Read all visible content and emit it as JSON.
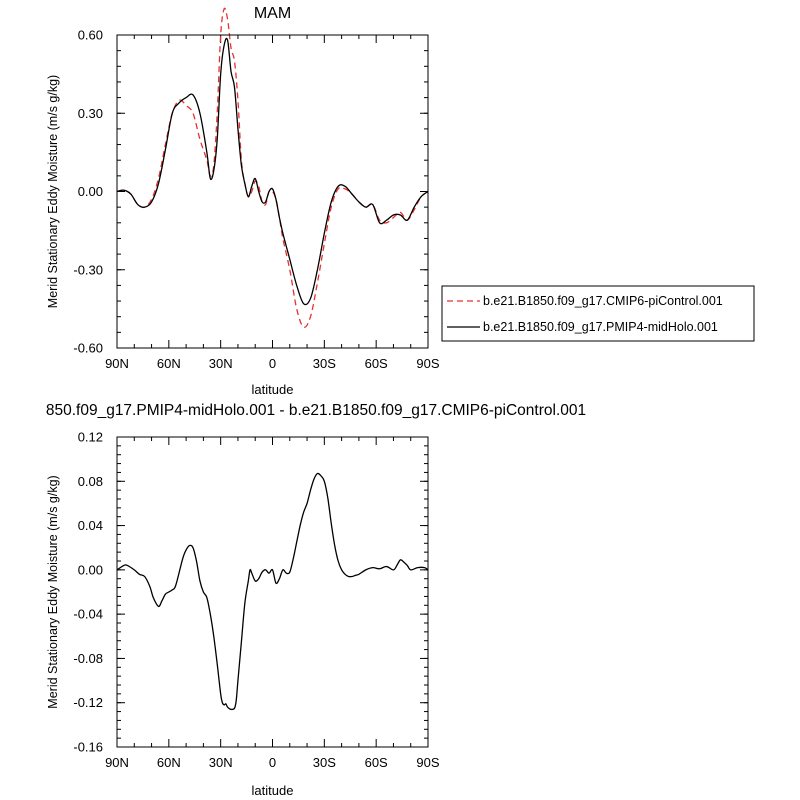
{
  "chart_data": [
    {
      "type": "line",
      "title": "MAM",
      "xlabel": "latitude",
      "ylabel": "Merid Stationary Eddy Moisture (m/s g/kg)",
      "x_ticks": [
        {
          "value": 90,
          "label": "90N"
        },
        {
          "value": 60,
          "label": "60N"
        },
        {
          "value": 30,
          "label": "30N"
        },
        {
          "value": 0,
          "label": "0"
        },
        {
          "value": -30,
          "label": "30S"
        },
        {
          "value": -60,
          "label": "60S"
        },
        {
          "value": -90,
          "label": "90S"
        }
      ],
      "y_ticks": [
        {
          "value": 0.6,
          "label": "0.60"
        },
        {
          "value": 0.3,
          "label": "0.30"
        },
        {
          "value": 0.0,
          "label": "0.00"
        },
        {
          "value": -0.3,
          "label": "-0.30"
        },
        {
          "value": -0.6,
          "label": "-0.60"
        }
      ],
      "xlim": [
        90,
        -90
      ],
      "ylim": [
        -0.6,
        0.6
      ],
      "legend_position": "right",
      "series": [
        {
          "name": "b.e21.B1850.f09_g17.CMIP6-piControl.001",
          "color": "#e8302f",
          "dash": "dashed",
          "x": [
            90,
            86,
            82,
            78,
            74,
            70,
            66,
            62,
            58,
            54,
            50,
            46,
            42,
            38,
            36,
            34,
            32,
            30,
            28,
            26,
            24,
            22,
            20,
            18,
            16,
            14,
            12,
            10,
            8,
            6,
            4,
            2,
            0,
            -2,
            -4,
            -6,
            -10,
            -14,
            -18,
            -22,
            -26,
            -30,
            -34,
            -38,
            -42,
            -46,
            -50,
            -54,
            -58,
            -62,
            -66,
            -70,
            -74,
            -78,
            -82,
            -86,
            -90
          ],
          "y": [
            0.0,
            0.005,
            -0.01,
            -0.05,
            -0.06,
            -0.03,
            0.05,
            0.18,
            0.3,
            0.35,
            0.33,
            0.3,
            0.2,
            0.12,
            0.06,
            0.1,
            0.3,
            0.6,
            0.7,
            0.66,
            0.55,
            0.5,
            0.35,
            0.12,
            0.03,
            -0.02,
            0.0,
            0.04,
            0.02,
            -0.04,
            -0.05,
            0.0,
            0.0,
            -0.03,
            -0.1,
            -0.18,
            -0.3,
            -0.45,
            -0.52,
            -0.48,
            -0.35,
            -0.2,
            -0.06,
            0.01,
            0.01,
            -0.01,
            -0.04,
            -0.06,
            -0.05,
            -0.11,
            -0.12,
            -0.1,
            -0.08,
            -0.11,
            -0.07,
            -0.02,
            0.0
          ]
        },
        {
          "name": "b.e21.B1850.f09_g17.PMIP4-midHolo.001",
          "color": "#000000",
          "dash": "solid",
          "x": [
            90,
            86,
            82,
            78,
            74,
            70,
            66,
            62,
            58,
            54,
            50,
            46,
            42,
            38,
            36,
            34,
            32,
            30,
            28,
            26,
            24,
            22,
            20,
            18,
            16,
            14,
            12,
            10,
            8,
            6,
            4,
            2,
            0,
            -2,
            -4,
            -6,
            -10,
            -14,
            -18,
            -22,
            -26,
            -30,
            -34,
            -38,
            -42,
            -46,
            -50,
            -54,
            -58,
            -62,
            -66,
            -70,
            -74,
            -78,
            -82,
            -86,
            -90
          ],
          "y": [
            0.0,
            0.005,
            -0.01,
            -0.05,
            -0.06,
            -0.04,
            0.03,
            0.16,
            0.3,
            0.34,
            0.36,
            0.37,
            0.3,
            0.15,
            0.05,
            0.08,
            0.2,
            0.45,
            0.56,
            0.58,
            0.46,
            0.4,
            0.24,
            0.1,
            0.03,
            -0.02,
            0.02,
            0.05,
            0.0,
            -0.04,
            -0.04,
            0.0,
            0.01,
            -0.03,
            -0.1,
            -0.16,
            -0.26,
            -0.36,
            -0.43,
            -0.41,
            -0.3,
            -0.16,
            -0.04,
            0.02,
            0.02,
            -0.01,
            -0.04,
            -0.06,
            -0.05,
            -0.12,
            -0.11,
            -0.09,
            -0.09,
            -0.11,
            -0.06,
            -0.02,
            0.0
          ]
        }
      ]
    },
    {
      "type": "line",
      "title": "850.f09_g17.PMIP4-midHolo.001 - b.e21.B1850.f09_g17.CMIP6-piControl.001",
      "xlabel": "latitude",
      "ylabel": "Merid Stationary Eddy Moisture (m/s g/kg)",
      "x_ticks": [
        {
          "value": 90,
          "label": "90N"
        },
        {
          "value": 60,
          "label": "60N"
        },
        {
          "value": 30,
          "label": "30N"
        },
        {
          "value": 0,
          "label": "0"
        },
        {
          "value": -30,
          "label": "30S"
        },
        {
          "value": -60,
          "label": "60S"
        },
        {
          "value": -90,
          "label": "90S"
        }
      ],
      "y_ticks": [
        {
          "value": 0.12,
          "label": "0.12"
        },
        {
          "value": 0.08,
          "label": "0.08"
        },
        {
          "value": 0.04,
          "label": "0.04"
        },
        {
          "value": 0.0,
          "label": "0.00"
        },
        {
          "value": -0.04,
          "label": "-0.04"
        },
        {
          "value": -0.08,
          "label": "-0.08"
        },
        {
          "value": -0.12,
          "label": "-0.12"
        },
        {
          "value": -0.16,
          "label": "-0.16"
        }
      ],
      "xlim": [
        90,
        -90
      ],
      "ylim": [
        -0.16,
        0.12
      ],
      "series": [
        {
          "color": "#000000",
          "dash": "solid",
          "x": [
            90,
            86,
            84,
            80,
            77,
            74,
            71,
            69,
            66,
            64,
            62,
            60,
            58,
            56,
            52,
            50,
            48,
            46,
            44,
            42,
            40,
            38,
            36,
            34,
            32,
            30,
            29,
            28,
            27,
            26,
            24,
            22,
            21,
            20,
            18,
            16,
            14,
            13,
            12,
            10,
            8,
            6,
            4,
            2,
            0,
            -2,
            -4,
            -6,
            -8,
            -10,
            -12,
            -14,
            -16,
            -18,
            -20,
            -22,
            -24,
            -26,
            -28,
            -30,
            -32,
            -34,
            -36,
            -38,
            -40,
            -42,
            -44,
            -46,
            -48,
            -50,
            -54,
            -58,
            -62,
            -66,
            -70,
            -72,
            -74,
            -76,
            -78,
            -80,
            -84,
            -88,
            -90
          ],
          "y": [
            0.0,
            0.004,
            0.004,
            0.0,
            -0.004,
            -0.006,
            -0.015,
            -0.025,
            -0.033,
            -0.028,
            -0.022,
            -0.02,
            -0.018,
            -0.014,
            0.01,
            0.018,
            0.022,
            0.02,
            0.008,
            -0.01,
            -0.02,
            -0.025,
            -0.04,
            -0.06,
            -0.085,
            -0.112,
            -0.12,
            -0.122,
            -0.121,
            -0.124,
            -0.126,
            -0.125,
            -0.118,
            -0.1,
            -0.065,
            -0.03,
            -0.01,
            0.0,
            -0.003,
            -0.01,
            -0.008,
            -0.002,
            0.0,
            -0.003,
            0.0,
            -0.012,
            -0.008,
            0.0,
            -0.003,
            -0.002,
            0.01,
            0.025,
            0.04,
            0.052,
            0.06,
            0.072,
            0.082,
            0.087,
            0.085,
            0.08,
            0.065,
            0.042,
            0.022,
            0.008,
            0.0,
            -0.004,
            -0.006,
            -0.006,
            -0.005,
            -0.004,
            0.0,
            0.002,
            0.001,
            0.003,
            0.0,
            0.004,
            0.009,
            0.007,
            0.004,
            0.0,
            0.002,
            0.002,
            0.0
          ]
        }
      ]
    }
  ]
}
